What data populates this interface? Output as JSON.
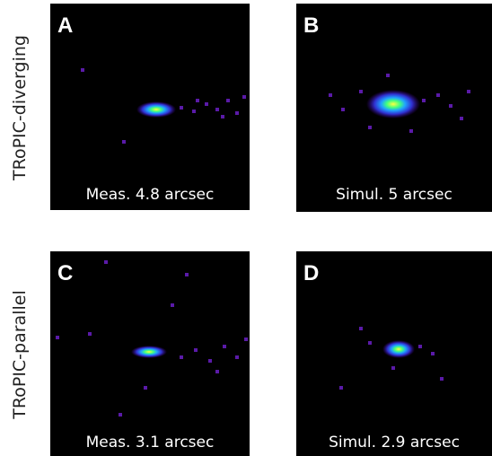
{
  "rows": [
    {
      "label": "TRoPIC-diverging",
      "panels": [
        {
          "letter": "A",
          "caption": "Meas. 4.8 arcsec"
        },
        {
          "letter": "B",
          "caption": "Simul. 5 arcsec"
        }
      ]
    },
    {
      "label": "TRoPIC-parallel",
      "panels": [
        {
          "letter": "C",
          "caption": "Meas. 3.1 arcsec"
        },
        {
          "letter": "D",
          "caption": "Simul. 2.9 arcsec"
        }
      ]
    }
  ]
}
